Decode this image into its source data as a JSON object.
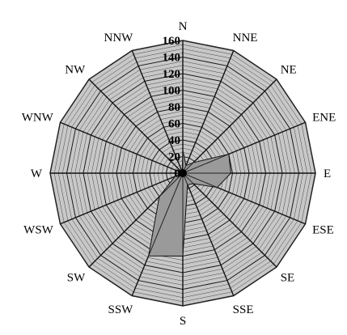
{
  "chart_data": {
    "type": "radar",
    "title": "",
    "directions": [
      "N",
      "NNE",
      "NE",
      "ENE",
      "E",
      "ESE",
      "SE",
      "SSE",
      "S",
      "SSW",
      "SW",
      "WSW",
      "W",
      "WNW",
      "NW",
      "NNW"
    ],
    "values": [
      28,
      10,
      18,
      60,
      58,
      45,
      18,
      15,
      100,
      108,
      40,
      10,
      2,
      3,
      3,
      2
    ],
    "range": [
      0,
      160
    ],
    "major_ticks": [
      0,
      20,
      40,
      60,
      80,
      100,
      120,
      140,
      160
    ],
    "minor_step": 5,
    "grid": true,
    "colors": {
      "background_fill": "#c8c8c8",
      "data_fill": "#9a9a9a",
      "grid_line": "#222222",
      "center_dot": "#000000"
    }
  }
}
